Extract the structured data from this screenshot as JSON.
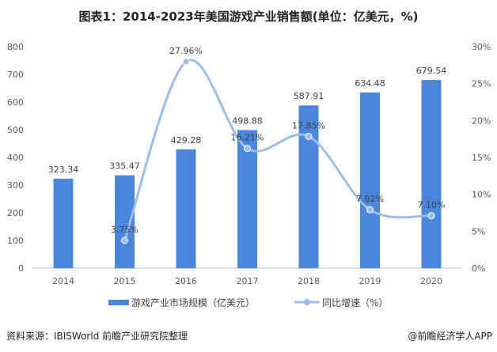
{
  "title": "图表1：2014-2023年美国游戏产业销售额(单位：亿美元，%)",
  "source": "资料来源：IBISWorld 前瞻产业研究院整理",
  "credit": "@前瞻经济学人APP",
  "chart_data": {
    "type": "bar+line",
    "categories": [
      "2014",
      "2015",
      "2016",
      "2017",
      "2018",
      "2019",
      "2020"
    ],
    "series": [
      {
        "name": "游戏产业市场规模（亿美元）",
        "type": "bar",
        "axis": "left",
        "color": "#4a86dc",
        "values": [
          323.34,
          335.47,
          429.28,
          498.88,
          587.91,
          634.48,
          679.54
        ],
        "labels": [
          "323.34",
          "335.47",
          "429.28",
          "498.88",
          "587.91",
          "634.48",
          "679.54"
        ]
      },
      {
        "name": "同比增速（%）",
        "type": "line",
        "axis": "right",
        "color": "#9dbde8",
        "values": [
          null,
          3.75,
          27.96,
          16.21,
          17.85,
          7.92,
          7.1
        ],
        "labels": [
          "",
          "3.75%",
          "27.96%",
          "16.21%",
          "17.85%",
          "7.92%",
          "7.10%"
        ]
      }
    ],
    "left_axis": {
      "range": [
        0,
        800
      ],
      "ticks": [
        "0",
        "100",
        "200",
        "300",
        "400",
        "500",
        "600",
        "700",
        "800"
      ]
    },
    "right_axis": {
      "range": [
        0,
        30
      ],
      "ticks": [
        "0%",
        "5%",
        "10%",
        "15%",
        "20%",
        "25%",
        "30%"
      ]
    },
    "grid": false,
    "legend": "bottom"
  }
}
